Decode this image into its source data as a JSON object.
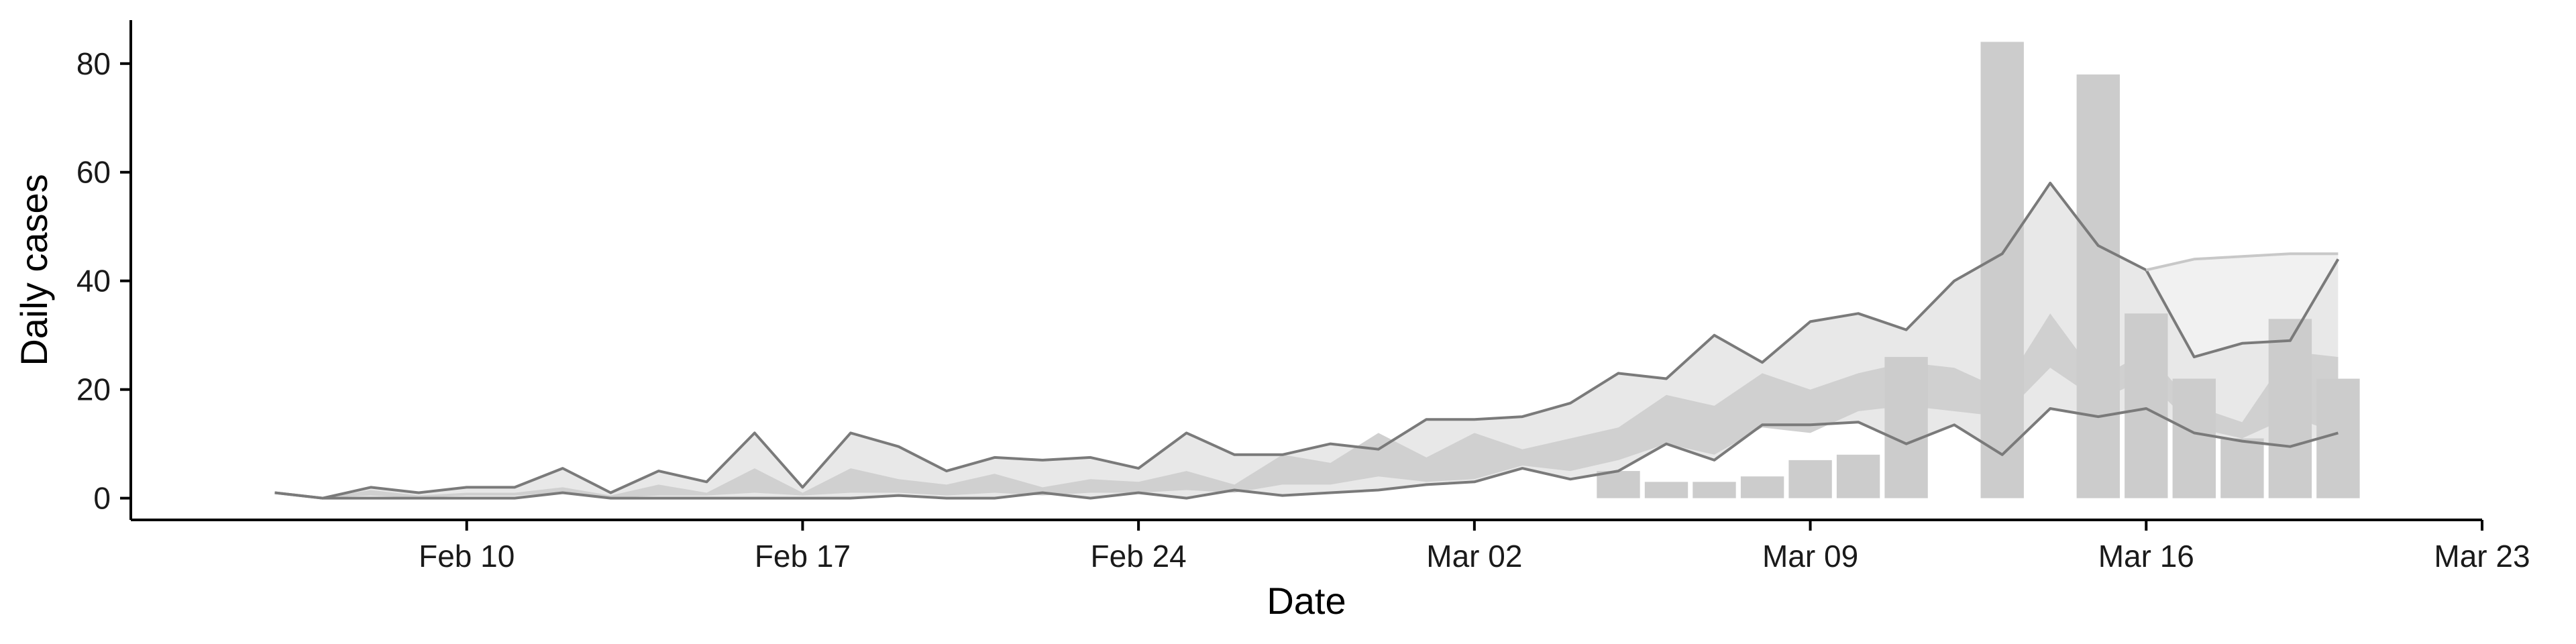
{
  "chart_data": {
    "type": "bar",
    "xlabel": "Date",
    "ylabel": "Daily cases",
    "x_ticks": [
      {
        "date": "2020-02-10",
        "label": "Feb 10"
      },
      {
        "date": "2020-02-17",
        "label": "Feb 17"
      },
      {
        "date": "2020-02-24",
        "label": "Feb 24"
      },
      {
        "date": "2020-03-02",
        "label": "Mar 02"
      },
      {
        "date": "2020-03-09",
        "label": "Mar 09"
      },
      {
        "date": "2020-03-16",
        "label": "Mar 16"
      },
      {
        "date": "2020-03-23",
        "label": "Mar 23"
      }
    ],
    "y_ticks": [
      0,
      20,
      40,
      60,
      80
    ],
    "xlim": [
      "2020-02-03",
      "2020-03-23"
    ],
    "ylim": [
      -4,
      88
    ],
    "grid": false,
    "colors": {
      "bars": "#cccccc",
      "band_outer": "#e8e8e8",
      "band_inner": "#d0d0d0",
      "lines": "#7a7a7a",
      "axis": "#000000"
    },
    "bars": [
      {
        "date": "2020-03-05",
        "value": 5
      },
      {
        "date": "2020-03-06",
        "value": 3
      },
      {
        "date": "2020-03-07",
        "value": 3
      },
      {
        "date": "2020-03-08",
        "value": 4
      },
      {
        "date": "2020-03-09",
        "value": 7
      },
      {
        "date": "2020-03-10",
        "value": 8
      },
      {
        "date": "2020-03-11",
        "value": 26
      },
      {
        "date": "2020-03-13",
        "value": 84
      },
      {
        "date": "2020-03-15",
        "value": 78
      },
      {
        "date": "2020-03-16",
        "value": 34
      },
      {
        "date": "2020-03-17",
        "value": 22
      },
      {
        "date": "2020-03-18",
        "value": 11
      },
      {
        "date": "2020-03-19",
        "value": 33
      },
      {
        "date": "2020-03-20",
        "value": 22
      }
    ],
    "series": [
      {
        "role": "upper_bound",
        "dates": [
          "2020-02-06",
          "2020-02-07",
          "2020-02-08",
          "2020-02-09",
          "2020-02-10",
          "2020-02-11",
          "2020-02-12",
          "2020-02-13",
          "2020-02-14",
          "2020-02-15",
          "2020-02-16",
          "2020-02-17",
          "2020-02-18",
          "2020-02-19",
          "2020-02-20",
          "2020-02-21",
          "2020-02-22",
          "2020-02-23",
          "2020-02-24",
          "2020-02-25",
          "2020-02-26",
          "2020-02-27",
          "2020-02-28",
          "2020-02-29",
          "2020-03-01",
          "2020-03-02",
          "2020-03-03",
          "2020-03-04",
          "2020-03-05",
          "2020-03-06",
          "2020-03-07",
          "2020-03-08",
          "2020-03-09",
          "2020-03-10",
          "2020-03-11",
          "2020-03-12",
          "2020-03-13",
          "2020-03-14",
          "2020-03-15",
          "2020-03-16",
          "2020-03-17",
          "2020-03-18",
          "2020-03-19",
          "2020-03-20"
        ],
        "values": [
          1,
          0,
          2,
          1,
          2,
          2,
          5.5,
          1,
          5,
          3,
          12,
          2,
          12,
          9.5,
          5,
          7.5,
          7,
          7.5,
          5.5,
          12,
          8,
          8,
          10,
          9,
          14.5,
          14.5,
          15,
          17.5,
          23,
          22,
          30,
          25,
          32.5,
          34,
          31,
          40,
          45,
          58,
          46.5,
          42,
          26,
          28.5,
          29,
          44
        ]
      },
      {
        "role": "lower_bound",
        "dates": [
          "2020-02-06",
          "2020-02-07",
          "2020-02-08",
          "2020-02-09",
          "2020-02-10",
          "2020-02-11",
          "2020-02-12",
          "2020-02-13",
          "2020-02-14",
          "2020-02-15",
          "2020-02-16",
          "2020-02-17",
          "2020-02-18",
          "2020-02-19",
          "2020-02-20",
          "2020-02-21",
          "2020-02-22",
          "2020-02-23",
          "2020-02-24",
          "2020-02-25",
          "2020-02-26",
          "2020-02-27",
          "2020-02-28",
          "2020-02-29",
          "2020-03-01",
          "2020-03-02",
          "2020-03-03",
          "2020-03-04",
          "2020-03-05",
          "2020-03-06",
          "2020-03-07",
          "2020-03-08",
          "2020-03-09",
          "2020-03-10",
          "2020-03-11",
          "2020-03-12",
          "2020-03-13",
          "2020-03-14",
          "2020-03-15",
          "2020-03-16",
          "2020-03-17",
          "2020-03-18",
          "2020-03-19",
          "2020-03-20"
        ],
        "values": [
          1,
          0,
          0,
          0,
          0,
          0,
          1,
          0,
          0,
          0,
          0,
          0,
          0,
          0.5,
          0,
          0,
          1,
          0,
          1,
          0,
          1.5,
          0.5,
          1,
          1.5,
          2.5,
          3,
          5.5,
          3.5,
          5,
          10,
          7,
          13.5,
          13.5,
          14,
          10,
          13.5,
          8,
          16.5,
          15,
          16.5,
          12,
          10.5,
          9.5,
          12
        ]
      },
      {
        "role": "inner_upper",
        "dates": [
          "2020-02-07",
          "2020-02-08",
          "2020-02-09",
          "2020-02-10",
          "2020-02-11",
          "2020-02-12",
          "2020-02-13",
          "2020-02-14",
          "2020-02-15",
          "2020-02-16",
          "2020-02-17",
          "2020-02-18",
          "2020-02-19",
          "2020-02-20",
          "2020-02-21",
          "2020-02-22",
          "2020-02-23",
          "2020-02-24",
          "2020-02-25",
          "2020-02-26",
          "2020-02-27",
          "2020-02-28",
          "2020-02-29",
          "2020-03-01",
          "2020-03-02",
          "2020-03-03",
          "2020-03-04",
          "2020-03-05",
          "2020-03-06",
          "2020-03-07",
          "2020-03-08",
          "2020-03-09",
          "2020-03-10",
          "2020-03-11",
          "2020-03-12",
          "2020-03-13",
          "2020-03-14",
          "2020-03-15",
          "2020-03-16",
          "2020-03-17",
          "2020-03-18",
          "2020-03-19",
          "2020-03-20"
        ],
        "values": [
          0,
          1.5,
          0.5,
          1,
          1,
          2,
          0.5,
          2.5,
          1,
          5.5,
          1,
          5.5,
          3.5,
          2.5,
          4.5,
          2,
          3.5,
          3,
          5,
          2.5,
          8,
          6.5,
          12,
          7.5,
          12,
          9,
          11,
          13,
          19,
          17,
          23,
          20,
          23,
          25,
          24,
          20,
          34,
          22,
          27,
          17,
          14,
          27,
          26
        ]
      },
      {
        "role": "inner_lower",
        "dates": [
          "2020-02-07",
          "2020-02-08",
          "2020-02-09",
          "2020-02-10",
          "2020-02-11",
          "2020-02-12",
          "2020-02-13",
          "2020-02-14",
          "2020-02-15",
          "2020-02-16",
          "2020-02-17",
          "2020-02-18",
          "2020-02-19",
          "2020-02-20",
          "2020-02-21",
          "2020-02-22",
          "2020-02-23",
          "2020-02-24",
          "2020-02-25",
          "2020-02-26",
          "2020-02-27",
          "2020-02-28",
          "2020-02-29",
          "2020-03-01",
          "2020-03-02",
          "2020-03-03",
          "2020-03-04",
          "2020-03-05",
          "2020-03-06",
          "2020-03-07",
          "2020-03-08",
          "2020-03-09",
          "2020-03-10",
          "2020-03-11",
          "2020-03-12",
          "2020-03-13",
          "2020-03-14",
          "2020-03-15",
          "2020-03-16",
          "2020-03-17",
          "2020-03-18",
          "2020-03-19",
          "2020-03-20"
        ],
        "values": [
          0,
          0.5,
          0,
          0.5,
          0.5,
          1,
          0,
          0.5,
          0.5,
          1,
          0.5,
          1,
          1,
          0.5,
          1,
          0.5,
          1,
          1,
          1.5,
          1,
          2.5,
          2.5,
          4,
          3,
          3.5,
          6,
          5,
          7,
          10,
          8,
          13,
          12,
          16,
          17,
          16,
          15,
          24,
          18,
          22,
          13,
          11,
          15,
          12
        ]
      },
      {
        "role": "extension_upper",
        "dates": [
          "2020-03-16",
          "2020-03-17",
          "2020-03-18",
          "2020-03-19",
          "2020-03-20"
        ],
        "values": [
          42,
          44,
          44.5,
          45,
          45
        ]
      }
    ]
  }
}
